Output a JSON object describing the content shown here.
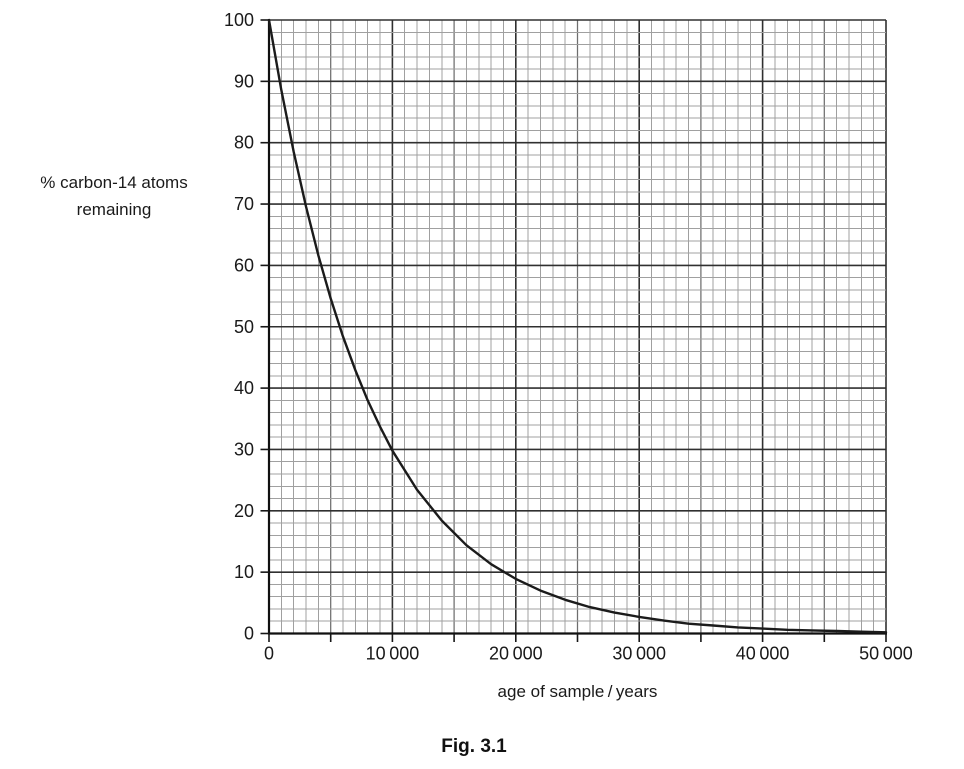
{
  "figure": {
    "caption": "Fig. 3.1",
    "y_axis_label": [
      "% carbon-14 atoms",
      "remaining"
    ],
    "x_axis_label_display": "age of sample / years"
  },
  "chart_data": {
    "type": "line",
    "title": "",
    "xlabel": "age of sample/years",
    "ylabel": "% carbon-14 atoms remaining",
    "xlim": [
      0,
      50000
    ],
    "ylim": [
      0,
      100
    ],
    "grid": {
      "on": true,
      "x_minor_step": 1000,
      "x_medium_step": 5000,
      "x_major_step": 10000,
      "y_minor_step": 2,
      "y_major_step": 10
    },
    "x_ticks": {
      "values": [
        0,
        10000,
        20000,
        30000,
        40000,
        50000
      ],
      "tick_mark_step": 5000,
      "labels": [
        "0",
        "10 000",
        "20 000",
        "30 000",
        "40 000",
        "50 000"
      ]
    },
    "y_ticks": {
      "values": [
        0,
        10,
        20,
        30,
        40,
        50,
        60,
        70,
        80,
        90,
        100
      ],
      "labels": [
        "0",
        "10",
        "20",
        "30",
        "40",
        "50",
        "60",
        "70",
        "80",
        "90",
        "100"
      ]
    },
    "legend": "none",
    "series": [
      {
        "name": "percent carbon-14 atoms remaining vs age of sample",
        "x": [
          0,
          1000,
          2000,
          3000,
          4000,
          5000,
          6000,
          7000,
          8000,
          9000,
          10000,
          12000,
          14000,
          16000,
          18000,
          20000,
          22000,
          24000,
          26000,
          28000,
          30000,
          32000,
          34000,
          36000,
          38000,
          40000,
          42000,
          44000,
          46000,
          48000,
          50000
        ],
        "y": [
          100,
          88.6,
          78.5,
          69.6,
          61.6,
          54.6,
          48.4,
          42.9,
          38.0,
          33.7,
          29.8,
          23.4,
          18.4,
          14.4,
          11.3,
          8.9,
          7.0,
          5.5,
          4.3,
          3.4,
          2.7,
          2.1,
          1.6,
          1.3,
          1.0,
          0.8,
          0.6,
          0.5,
          0.4,
          0.3,
          0.2
        ]
      }
    ],
    "colors": {
      "curve": "#1b1b1b",
      "grid_minor": "#a0a0a0",
      "grid_medium": "#6e6e6e",
      "grid_major": "#303030",
      "axis": "#101010",
      "text": "#1a1a1a"
    }
  }
}
